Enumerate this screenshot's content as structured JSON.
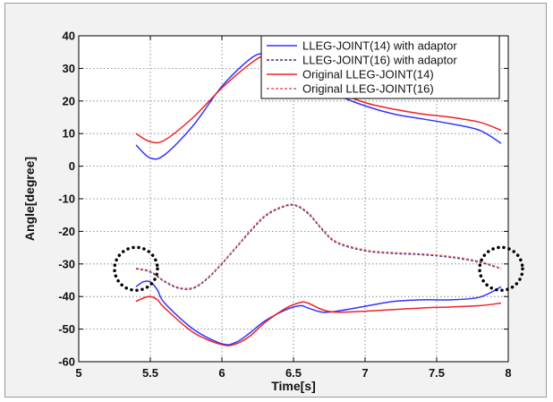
{
  "chart_data": {
    "type": "line",
    "xlabel": "Time[s]",
    "ylabel": "Angle[degree]",
    "xlim": [
      5,
      8
    ],
    "ylim": [
      -60,
      40
    ],
    "xticks": [
      5,
      5.5,
      6,
      6.5,
      7,
      7.5,
      8
    ],
    "xtick_labels": [
      "5",
      "5.5",
      "6",
      "6.5",
      "7",
      "7.5",
      "8"
    ],
    "yticks": [
      -60,
      -50,
      -40,
      -30,
      -20,
      -10,
      0,
      10,
      20,
      30,
      40
    ],
    "ytick_labels": [
      "-60",
      "-50",
      "-40",
      "-30",
      "-20",
      "-10",
      "0",
      "10",
      "20",
      "30",
      "40"
    ],
    "grid": true,
    "legend_position": "top-right",
    "series": [
      {
        "name": "LLEG-JOINT(14) with adaptor",
        "color": "#3333ff",
        "style": "solid",
        "x": [
          5.4,
          5.5,
          5.6,
          5.8,
          6.0,
          6.2,
          6.3,
          6.4,
          6.5,
          6.6,
          6.7,
          6.8,
          7.0,
          7.2,
          7.4,
          7.6,
          7.8,
          7.95
        ],
        "y": [
          6.5,
          2.5,
          3.5,
          12.5,
          24.5,
          33,
          34.5,
          33,
          31,
          28,
          25,
          22,
          18.5,
          16,
          14.5,
          13,
          11,
          7
        ]
      },
      {
        "name": "LLEG-JOINT(16) with adaptor",
        "color": "#333388",
        "style": "dashed",
        "x": [
          5.4,
          5.5,
          5.6,
          5.7,
          5.8,
          5.9,
          6.0,
          6.1,
          6.2,
          6.3,
          6.4,
          6.5,
          6.6,
          6.7,
          6.8,
          7.0,
          7.2,
          7.4,
          7.6,
          7.8,
          7.95
        ],
        "y": [
          -31.5,
          -32.5,
          -35.5,
          -37.5,
          -37.5,
          -34.5,
          -30,
          -25,
          -20,
          -15.5,
          -13,
          -12,
          -14.5,
          -19.5,
          -23.5,
          -26,
          -26.8,
          -27.2,
          -28,
          -29.5,
          -31.5
        ]
      },
      {
        "name": "Original LLEG-JOINT(14)",
        "color": "#ee2222",
        "style": "solid",
        "x": [
          5.4,
          5.5,
          5.6,
          5.8,
          6.0,
          6.2,
          6.3,
          6.4,
          6.5,
          6.6,
          6.7,
          6.8,
          7.0,
          7.2,
          7.4,
          7.6,
          7.8,
          7.95
        ],
        "y": [
          10,
          7.5,
          8,
          15,
          24,
          31.5,
          34,
          34,
          32,
          29,
          26,
          23,
          19.5,
          17.5,
          16,
          15,
          13.5,
          11
        ]
      },
      {
        "name": "Original LLEG-JOINT(16)",
        "color": "#ee5555",
        "style": "dashed",
        "x": [
          5.4,
          5.5,
          5.6,
          5.7,
          5.8,
          5.9,
          6.0,
          6.1,
          6.2,
          6.3,
          6.4,
          6.5,
          6.6,
          6.7,
          6.8,
          7.0,
          7.2,
          7.4,
          7.6,
          7.8,
          7.95
        ],
        "y": [
          -31.3,
          -32.2,
          -35.2,
          -37.2,
          -37.2,
          -34.2,
          -29.7,
          -24.7,
          -19.6,
          -15.1,
          -12.7,
          -11.7,
          -14.1,
          -19.1,
          -23.1,
          -25.7,
          -26.5,
          -26.9,
          -27.7,
          -29.2,
          -31.3
        ]
      },
      {
        "name": "",
        "color": "#3333ff",
        "style": "solid",
        "x": [
          5.4,
          5.45,
          5.5,
          5.55,
          5.6,
          5.8,
          6.0,
          6.1,
          6.2,
          6.3,
          6.45,
          6.55,
          6.6,
          6.7,
          6.8,
          7.0,
          7.2,
          7.4,
          7.6,
          7.8,
          7.95
        ],
        "y": [
          -37,
          -35.5,
          -35.5,
          -38,
          -42,
          -50,
          -54.5,
          -54,
          -51,
          -47.5,
          -44,
          -42.8,
          -43.5,
          -44.8,
          -44.5,
          -43,
          -41.5,
          -41,
          -41,
          -40.2,
          -37
        ]
      },
      {
        "name": "",
        "color": "#ee2222",
        "style": "solid",
        "x": [
          5.4,
          5.45,
          5.5,
          5.55,
          5.6,
          5.8,
          6.0,
          6.1,
          6.2,
          6.3,
          6.45,
          6.55,
          6.6,
          6.7,
          6.8,
          7.0,
          7.2,
          7.4,
          7.6,
          7.8,
          7.95
        ],
        "y": [
          -41.5,
          -40.5,
          -40,
          -41,
          -43.5,
          -51,
          -54.8,
          -54.5,
          -52,
          -48,
          -43.5,
          -41.8,
          -42,
          -44,
          -44.8,
          -44.5,
          -44,
          -43.5,
          -43.2,
          -42.8,
          -42
        ]
      }
    ],
    "annotations": [
      {
        "shape": "dotted-circle",
        "x": 5.4,
        "y": -31.5
      },
      {
        "shape": "dotted-circle",
        "x": 7.95,
        "y": -31.5
      }
    ]
  }
}
